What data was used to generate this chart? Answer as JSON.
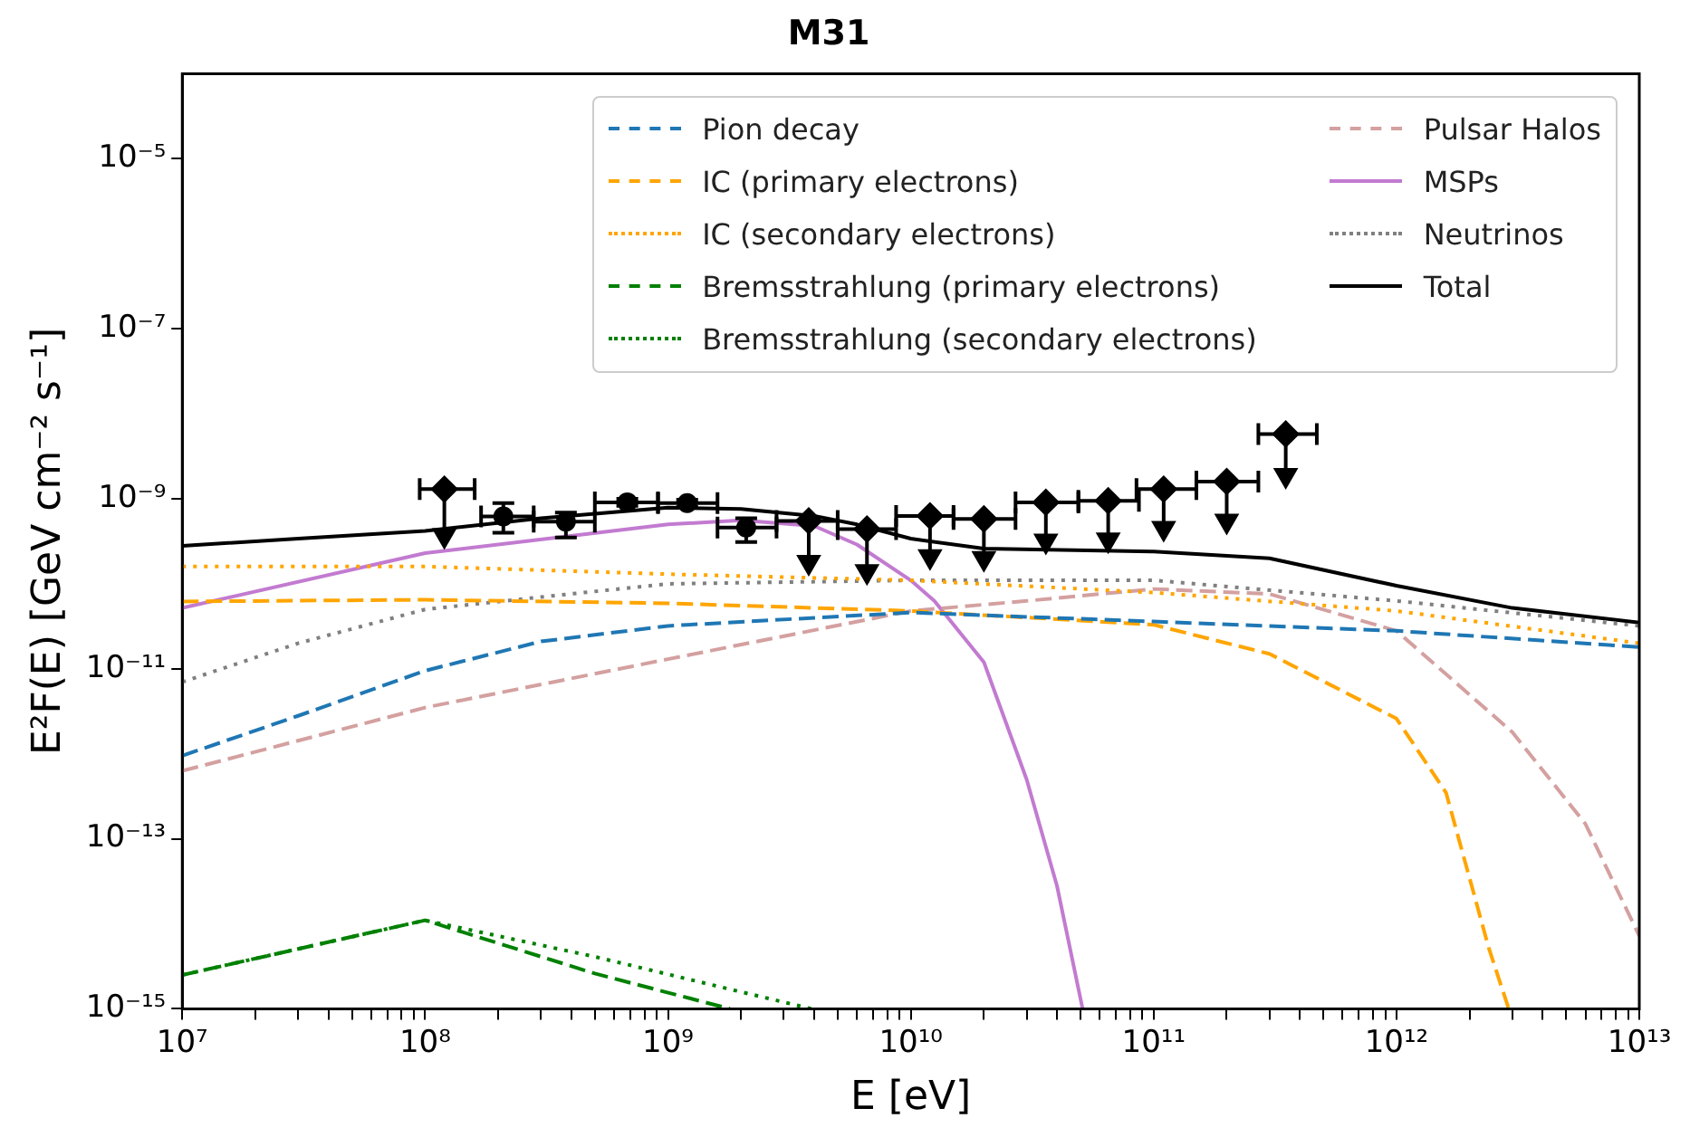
{
  "chart_data": {
    "type": "line",
    "title": "M31",
    "xlabel": "E [eV]",
    "ylabel": "E²F(E) [GeV cm⁻² s⁻¹]",
    "log": "xy",
    "grid": false,
    "legend": "top right",
    "xlim": [
      10000000.0,
      10000000000000.0
    ],
    "ylim": [
      1e-15,
      0.0001
    ],
    "xticks": [
      {
        "value": 10000000.0,
        "label": "10⁷"
      },
      {
        "value": 20000000.0,
        "label": null
      },
      {
        "value": 30000000.0,
        "label": null
      },
      {
        "value": 40000000.0,
        "label": null
      },
      {
        "value": 50000000.0,
        "label": null
      },
      {
        "value": 60000000.0,
        "label": null
      },
      {
        "value": 70000000.0,
        "label": null
      },
      {
        "value": 80000000.0,
        "label": null
      },
      {
        "value": 90000000.0,
        "label": null
      },
      {
        "value": 100000000.0,
        "label": "10⁸"
      },
      {
        "value": 200000000.0,
        "label": null
      },
      {
        "value": 300000000.0,
        "label": null
      },
      {
        "value": 400000000.0,
        "label": null
      },
      {
        "value": 500000000.0,
        "label": null
      },
      {
        "value": 600000000.0,
        "label": null
      },
      {
        "value": 700000000.0,
        "label": null
      },
      {
        "value": 800000000.0,
        "label": null
      },
      {
        "value": 900000000.0,
        "label": null
      },
      {
        "value": 1000000000.0,
        "label": "10⁹"
      },
      {
        "value": 2000000000.0,
        "label": null
      },
      {
        "value": 3000000000.0,
        "label": null
      },
      {
        "value": 4000000000.0,
        "label": null
      },
      {
        "value": 5000000000.0,
        "label": null
      },
      {
        "value": 6000000000.0,
        "label": null
      },
      {
        "value": 7000000000.0,
        "label": null
      },
      {
        "value": 8000000000.0,
        "label": null
      },
      {
        "value": 9000000000.0,
        "label": null
      },
      {
        "value": 10000000000.0,
        "label": "10¹⁰"
      },
      {
        "value": 20000000000.0,
        "label": null
      },
      {
        "value": 30000000000.0,
        "label": null
      },
      {
        "value": 40000000000.0,
        "label": null
      },
      {
        "value": 50000000000.0,
        "label": null
      },
      {
        "value": 60000000000.0,
        "label": null
      },
      {
        "value": 70000000000.0,
        "label": null
      },
      {
        "value": 80000000000.0,
        "label": null
      },
      {
        "value": 90000000000.0,
        "label": null
      },
      {
        "value": 100000000000.0,
        "label": "10¹¹"
      },
      {
        "value": 200000000000.0,
        "label": null
      },
      {
        "value": 300000000000.0,
        "label": null
      },
      {
        "value": 400000000000.0,
        "label": null
      },
      {
        "value": 500000000000.0,
        "label": null
      },
      {
        "value": 600000000000.0,
        "label": null
      },
      {
        "value": 700000000000.0,
        "label": null
      },
      {
        "value": 800000000000.0,
        "label": null
      },
      {
        "value": 900000000000.0,
        "label": null
      },
      {
        "value": 1000000000000.0,
        "label": "10¹²"
      },
      {
        "value": 2000000000000.0,
        "label": null
      },
      {
        "value": 3000000000000.0,
        "label": null
      },
      {
        "value": 4000000000000.0,
        "label": null
      },
      {
        "value": 5000000000000.0,
        "label": null
      },
      {
        "value": 6000000000000.0,
        "label": null
      },
      {
        "value": 7000000000000.0,
        "label": null
      },
      {
        "value": 8000000000000.0,
        "label": null
      },
      {
        "value": 9000000000000.0,
        "label": null
      },
      {
        "value": 10000000000000.0,
        "label": "10¹³"
      }
    ],
    "yticks": [
      {
        "value": 1e-15,
        "label": "10⁻¹⁵"
      },
      {
        "value": 1e-13,
        "label": "10⁻¹³"
      },
      {
        "value": 1e-11,
        "label": "10⁻¹¹"
      },
      {
        "value": 1e-09,
        "label": "10⁻⁹"
      },
      {
        "value": 1e-07,
        "label": "10⁻⁷"
      },
      {
        "value": 1e-05,
        "label": "10⁻⁵"
      }
    ],
    "series": [
      {
        "name": "Pion decay",
        "line_style": "dashed",
        "marker": "none",
        "color": "#1f77b4",
        "x": [
          10000000.0,
          30000000.0,
          100000000.0,
          300000000.0,
          1000000000.0,
          10000000000.0,
          100000000000.0,
          1000000000000.0,
          10000000000000.0
        ],
        "values": [
          9.5e-13,
          2.8e-12,
          9.5e-12,
          2.1e-11,
          3.2e-11,
          4.6e-11,
          3.6e-11,
          2.8e-11,
          1.8e-11
        ]
      },
      {
        "name": "IC (primary electrons)",
        "line_style": "dashed",
        "marker": "none",
        "color": "#ffa500",
        "x": [
          10000000.0,
          100000000.0,
          1000000000.0,
          10000000000.0,
          100000000000.0,
          300000000000.0,
          1000000000000.0,
          1600000000000.0,
          2400000000000.0,
          2900000000000.0
        ],
        "values": [
          6.2e-11,
          6.5e-11,
          5.9e-11,
          4.8e-11,
          3.3e-11,
          1.5e-11,
          2.6e-12,
          3.5e-13,
          5.2e-15,
          1e-15
        ]
      },
      {
        "name": "IC (secondary electrons)",
        "line_style": "dotted",
        "marker": "none",
        "color": "#ffa500",
        "x": [
          10000000.0,
          100000000.0,
          1000000000.0,
          10000000000.0,
          100000000000.0,
          1000000000000.0,
          10000000000000.0
        ],
        "values": [
          1.6e-10,
          1.6e-10,
          1.3e-10,
          1.1e-10,
          7.9e-11,
          4.8e-11,
          2e-11
        ]
      },
      {
        "name": "Bremsstrahlung (primary electrons)",
        "line_style": "dashed",
        "marker": "none",
        "color": "#008000",
        "x": [
          10000000.0,
          100000000.0,
          500000000.0,
          1800000000.0
        ],
        "values": [
          2.5e-15,
          1.1e-14,
          2.6e-15,
          1e-15
        ]
      },
      {
        "name": "Bremsstrahlung (secondary electrons)",
        "line_style": "dotted",
        "marker": "none",
        "color": "#008000",
        "x": [
          10000000.0,
          100000000.0,
          500000000.0,
          3900000000.0
        ],
        "values": [
          2.5e-15,
          1.1e-14,
          4.1e-15,
          1e-15
        ]
      },
      {
        "name": "Pulsar Halos",
        "line_style": "dashed",
        "marker": "none",
        "color": "#d4a0a0",
        "x": [
          10000000.0,
          100000000.0,
          1000000000.0,
          10000000000.0,
          30000000000.0,
          100000000000.0,
          300000000000.0,
          1000000000000.0,
          3000000000000.0,
          6000000000000.0,
          10000000000000.0
        ],
        "values": [
          6.3e-13,
          3.5e-12,
          1.3e-11,
          4.8e-11,
          6.3e-11,
          8.7e-11,
          7.6e-11,
          2.8e-11,
          1.8e-12,
          1.5e-13,
          7.2e-15
        ]
      },
      {
        "name": "MSPs",
        "line_style": "solid",
        "marker": "none",
        "color": "#c27bd0",
        "x": [
          10000000.0,
          100000000.0,
          1000000000.0,
          2000000000.0,
          4000000000.0,
          6000000000.0,
          10000000000.0,
          12500000000.0,
          20000000000.0,
          30000000000.0,
          40000000000.0,
          51000000000.0
        ],
        "values": [
          5.2e-11,
          2.3e-10,
          5e-10,
          5.6e-10,
          4.8e-10,
          2.9e-10,
          1.1e-10,
          6.3e-11,
          1.2e-11,
          5e-13,
          2.8e-14,
          1e-15
        ]
      },
      {
        "name": "Neutrinos",
        "line_style": "dotted",
        "marker": "none",
        "color": "#808080",
        "x": [
          10000000.0,
          30000000.0,
          100000000.0,
          300000000.0,
          1000000000.0,
          10000000000.0,
          100000000000.0,
          1000000000000.0,
          10000000000000.0
        ],
        "values": [
          7e-12,
          2e-11,
          5e-11,
          7e-11,
          1e-10,
          1.1e-10,
          1.1e-10,
          6.3e-11,
          3.2e-11
        ]
      },
      {
        "name": "Total",
        "line_style": "solid",
        "marker": "none",
        "color": "#000000",
        "x": [
          10000000.0,
          30000000.0,
          100000000.0,
          300000000.0,
          1000000000.0,
          2000000000.0,
          4000000000.0,
          6000000000.0,
          10000000000.0,
          20000000000.0,
          100000000000.0,
          300000000000.0,
          1000000000000.0,
          3000000000000.0,
          10000000000000.0
        ],
        "values": [
          2.8e-10,
          3.4e-10,
          4.2e-10,
          5.9e-10,
          7.9e-10,
          7.6e-10,
          6.3e-10,
          5e-10,
          3.4e-10,
          2.6e-10,
          2.4e-10,
          2e-10,
          9.5e-11,
          5.2e-11,
          3.5e-11
        ]
      },
      {
        "type": "scatter",
        "marker": "circle",
        "color": "#000000",
        "x": [
          210000000.0,
          380000000.0,
          680000000.0,
          1200000000.0,
          2100000000.0
        ],
        "values": [
          6.2e-10,
          5.4e-10,
          9.1e-10,
          8.9e-10,
          4.6e-10
        ],
        "errors": [
          [
            4e-10,
            8.9e-10
          ],
          [
            3.5e-10,
            6.9e-10
          ],
          [
            8.3e-10,
            1e-09
          ],
          [
            8.1e-10,
            9.8e-10
          ],
          [
            3.1e-10,
            5.9e-10
          ]
        ],
        "xerrors": [
          [
            170000000.0,
            280000000.0
          ],
          [
            280000000.0,
            500000000.0
          ],
          [
            500000000.0,
            910000000.0
          ],
          [
            910000000.0,
            1600000000.0
          ],
          [
            1600000000.0,
            2800000000.0
          ]
        ]
      },
      {
        "type": "scatter",
        "marker": "diamond",
        "color": "#000000",
        "x": [
          120000000.0,
          3800000000.0,
          6600000000.0,
          12000000000.0,
          20000000000.0,
          36000000000.0,
          65000000000.0,
          110000000000.0,
          200000000000.0,
          350000000000.0
        ],
        "values": [
          1.3e-09,
          5.5e-10,
          4.4e-10,
          6.3e-10,
          5.8e-10,
          9.1e-10,
          9.5e-10,
          1.3e-09,
          1.6e-09,
          5.8e-09
        ],
        "errors": [
          [
            3.7e-10,
            1.3e-09
          ],
          [
            1.8e-10,
            5.5e-10
          ],
          [
            1.4e-10,
            4.4e-10
          ],
          [
            2.1e-10,
            6.3e-10
          ],
          [
            2e-10,
            5.8e-10
          ],
          [
            3.2e-10,
            9.1e-10
          ],
          [
            3.3e-10,
            9.5e-10
          ],
          [
            4.5e-10,
            1.3e-09
          ],
          [
            5.5e-10,
            1.6e-09
          ],
          [
            1.9e-09,
            5.8e-09
          ]
        ],
        "xerrors": [
          [
            95000000.0,
            160000000.0
          ],
          [
            2800000000.0,
            5000000000.0
          ],
          [
            5000000000.0,
            8700000000.0
          ],
          [
            8700000000.0,
            15000000000.0
          ],
          [
            15000000000.0,
            27000000000.0
          ],
          [
            27000000000.0,
            49000000000.0
          ],
          [
            49000000000.0,
            87000000000.0
          ],
          [
            85000000000.0,
            150000000000.0
          ],
          [
            150000000000.0,
            270000000000.0
          ],
          [
            270000000000.0,
            470000000000.0
          ]
        ]
      },
      {
        "type": "scatter",
        "marker": "triangle",
        "color": "#000000",
        "x": [
          120000000.0,
          3800000000.0,
          6600000000.0,
          12000000000.0,
          20000000000.0,
          36000000000.0,
          65000000000.0,
          110000000000.0,
          200000000000.0,
          350000000000.0
        ],
        "values": [
          3.7e-10,
          1.8e-10,
          1.4e-10,
          2.1e-10,
          2e-10,
          3.2e-10,
          3.3e-10,
          4.5e-10,
          5.5e-10,
          1.9e-09
        ]
      }
    ]
  }
}
